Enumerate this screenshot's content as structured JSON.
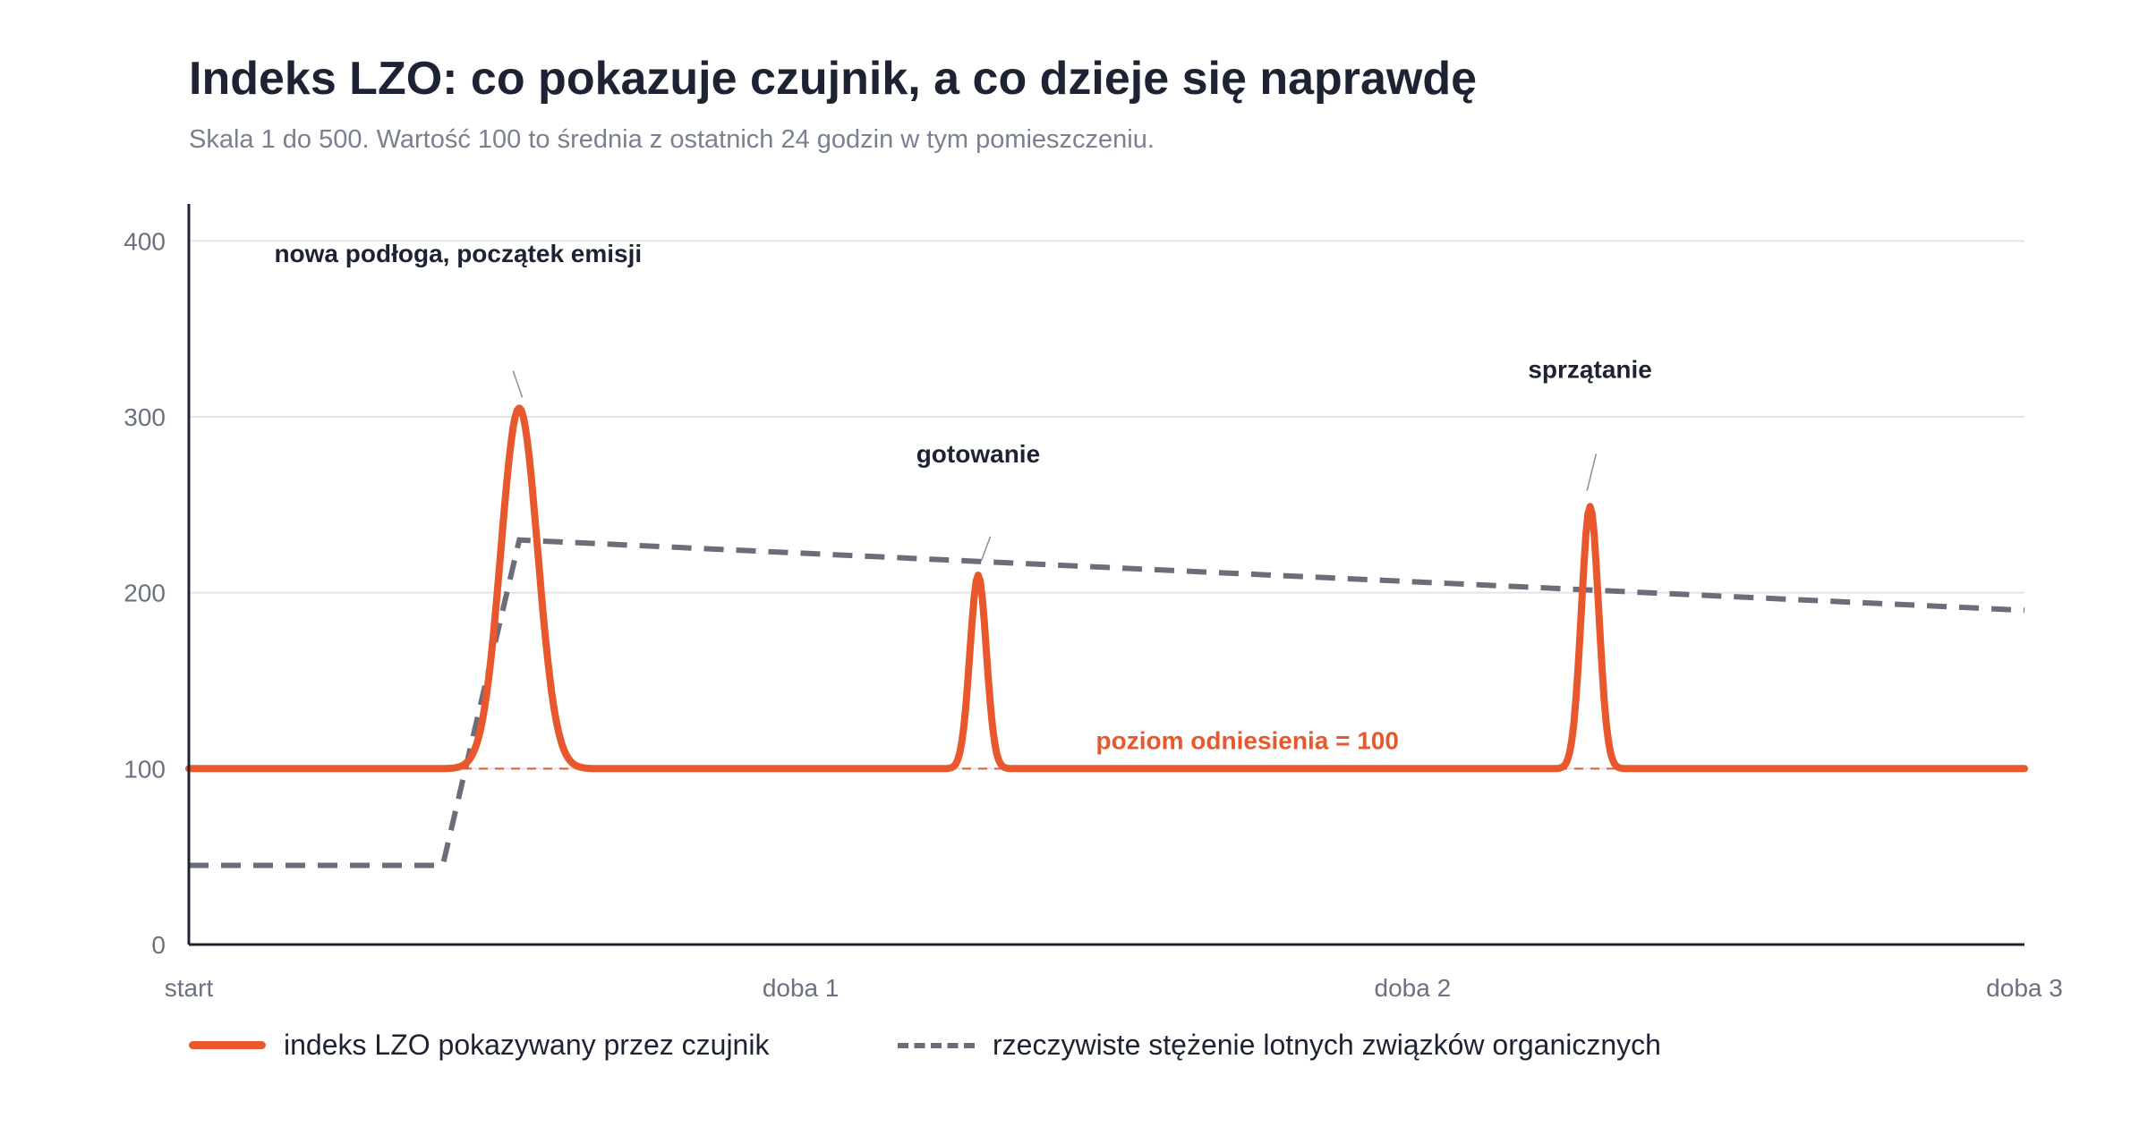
{
  "title": "Indeks LZO: co pokazuje czujnik, a co dzieje się naprawdę",
  "subtitle": "Skala 1 do 500. Wartość 100 to średnia z ostatnich 24 godzin w tym pomieszczeniu.",
  "colors": {
    "sensor": "#e8582c",
    "actual": "#6b6e7a",
    "axis": "#1d2333",
    "grid": "#e3e4e8",
    "text": "#1d2333",
    "muted": "#7a8090"
  },
  "chart_data": {
    "type": "line",
    "x_ticks": [
      {
        "x": 0,
        "label": "start"
      },
      {
        "x": 1,
        "label": "doba 1"
      },
      {
        "x": 2,
        "label": "doba 2"
      },
      {
        "x": 3,
        "label": "doba 3"
      }
    ],
    "y_ticks": [
      0,
      100,
      200,
      300,
      400
    ],
    "xlim": [
      0,
      3
    ],
    "ylim": [
      0,
      420
    ],
    "grid": true,
    "baseline": 100,
    "legend_position": "bottom",
    "series": [
      {
        "name": "indeks LZO pokazywany przez czujnik",
        "style": "solid",
        "baseline": 100,
        "peaks": [
          {
            "x": 0.54,
            "y": 305,
            "width": 0.085
          },
          {
            "x": 1.29,
            "y": 210,
            "width": 0.038
          },
          {
            "x": 2.29,
            "y": 249,
            "width": 0.04
          }
        ]
      },
      {
        "name": "rzeczywiste stężenie lotnych związków organicznych",
        "style": "dashed",
        "points": [
          [
            0,
            45
          ],
          [
            0.415,
            45
          ],
          [
            0.54,
            230
          ],
          [
            3,
            190
          ]
        ]
      }
    ],
    "annotations": [
      {
        "text": "nowa podłoga, początek emisji",
        "x": 0.54,
        "y": 305
      },
      {
        "text": "gotowanie",
        "x": 1.29,
        "y": 210
      },
      {
        "text": "sprzątanie",
        "x": 2.29,
        "y": 249
      }
    ],
    "reference_label": "poziom odniesienia = 100"
  }
}
